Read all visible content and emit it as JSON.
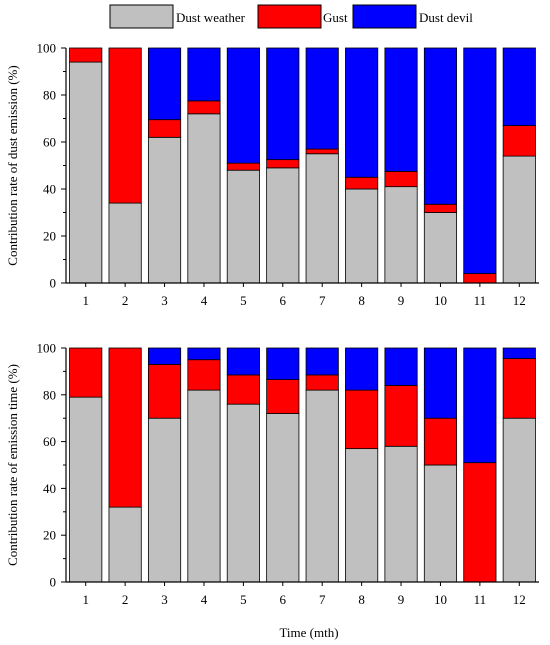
{
  "legend": {
    "items": [
      {
        "label": "Dust weather",
        "color": "#c0c0c0"
      },
      {
        "label": "Gust",
        "color": "#ff0000"
      },
      {
        "label": "Dust devil",
        "color": "#0000ff"
      }
    ]
  },
  "xlabel": "Time (mth)",
  "chart_data": [
    {
      "type": "bar",
      "stacked": true,
      "ylabel": "Contribution rate of dust emission (%)",
      "ylim": [
        0,
        100
      ],
      "yticks": [
        0,
        20,
        40,
        60,
        80,
        100
      ],
      "categories": [
        "1",
        "2",
        "3",
        "4",
        "5",
        "6",
        "7",
        "8",
        "9",
        "10",
        "11",
        "12"
      ],
      "series": [
        {
          "name": "Dust weather",
          "color": "#c0c0c0",
          "values": [
            94,
            34,
            62,
            72,
            48,
            49,
            55,
            40,
            41,
            30,
            0,
            54
          ]
        },
        {
          "name": "Gust",
          "color": "#ff0000",
          "values": [
            6,
            66,
            7.5,
            5.5,
            3,
            3.5,
            2,
            5,
            6.5,
            3.5,
            4,
            13
          ]
        },
        {
          "name": "Dust devil",
          "color": "#0000ff",
          "values": [
            0,
            0,
            30.5,
            22.5,
            49,
            47.5,
            43,
            55,
            52.5,
            66.5,
            96,
            33
          ]
        }
      ]
    },
    {
      "type": "bar",
      "stacked": true,
      "ylabel": "Contribution rate of emission time (%)",
      "ylim": [
        0,
        100
      ],
      "yticks": [
        0,
        20,
        40,
        60,
        80,
        100
      ],
      "categories": [
        "1",
        "2",
        "3",
        "4",
        "5",
        "6",
        "7",
        "8",
        "9",
        "10",
        "11",
        "12"
      ],
      "series": [
        {
          "name": "Dust weather",
          "color": "#c0c0c0",
          "values": [
            79,
            32,
            70,
            82,
            76,
            72,
            82,
            57,
            58,
            50,
            0,
            70
          ]
        },
        {
          "name": "Gust",
          "color": "#ff0000",
          "values": [
            21,
            68,
            23,
            13,
            12.5,
            14.5,
            6.5,
            25,
            26,
            20,
            51,
            25.5
          ]
        },
        {
          "name": "Dust devil",
          "color": "#0000ff",
          "values": [
            0,
            0,
            7,
            5,
            11.5,
            13.5,
            11.5,
            18,
            16,
            30,
            49,
            4.5
          ]
        }
      ]
    }
  ]
}
